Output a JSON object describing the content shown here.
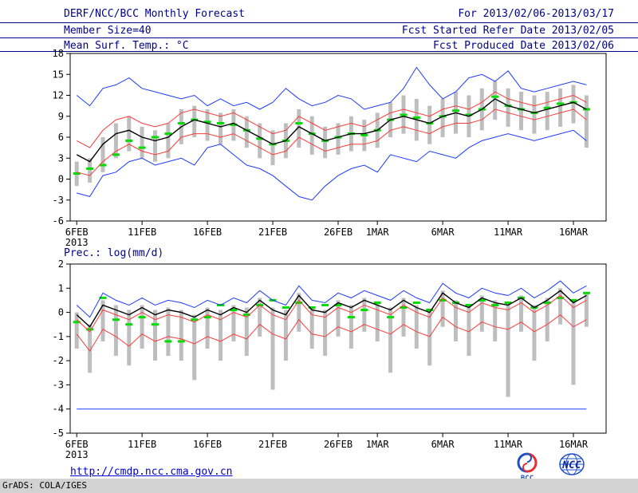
{
  "header": {
    "title": "DERF/NCC/BCC Monthly Forecast",
    "member_size": "Member Size=40",
    "for_range": "For 2013/02/06-2013/03/17",
    "fcst_started": "Fcst Started Refer Date 2013/02/05",
    "fcst_produced": "Fcst Produced Date 2013/02/06"
  },
  "footer": {
    "url": "http://cmdp.ncc.cma.gov.cn",
    "grads_credit": "GrADS: COLA/IGES",
    "bcc_label": "BCC",
    "ncc_label": "NCC"
  },
  "chart_data": [
    {
      "type": "line",
      "title": "Mean Surf. Temp.: °C",
      "xlabel": "",
      "ylabel": "",
      "ylim": [
        -6,
        18
      ],
      "yticks": [
        -6,
        -3,
        0,
        3,
        6,
        9,
        12,
        15,
        18
      ],
      "x_start_date": "2013-02-06",
      "x_end_date": "2013-03-17",
      "x_count": 40,
      "x_span": 41,
      "grid": false,
      "legend": false,
      "xticks": [
        {
          "index": 0,
          "label": "6FEB",
          "sub": "2013"
        },
        {
          "index": 5,
          "label": "11FEB"
        },
        {
          "index": 10,
          "label": "16FEB"
        },
        {
          "index": 15,
          "label": "21FEB"
        },
        {
          "index": 20,
          "label": "26FEB"
        },
        {
          "index": 23,
          "label": "1MAR"
        },
        {
          "index": 28,
          "label": "6MAR"
        },
        {
          "index": 33,
          "label": "11MAR"
        },
        {
          "index": 38,
          "label": "16MAR"
        }
      ],
      "colors": {
        "bar": "#bebebe",
        "green": "#00dc00",
        "blue": "#1e3cff",
        "red": "#fa3c3c",
        "mean": "#000000"
      },
      "series": [
        {
          "name": "ensemble-max",
          "color": "#1e3cff",
          "width": 1,
          "values": [
            12,
            10.5,
            13,
            13.5,
            14.5,
            13,
            12.5,
            12,
            11.5,
            12,
            10.5,
            11.5,
            10.5,
            11,
            10,
            11,
            13,
            11.5,
            10.5,
            11,
            12,
            11.5,
            10,
            10.5,
            11,
            13,
            16,
            13.5,
            11.5,
            12.5,
            14.5,
            15,
            14,
            15.5,
            13,
            12.5,
            13,
            13.5,
            14,
            13.5
          ]
        },
        {
          "name": "ensemble-min",
          "color": "#1e3cff",
          "width": 1,
          "values": [
            -2,
            -2.5,
            0.5,
            1,
            2.5,
            3,
            2,
            2.5,
            3,
            2,
            4.5,
            5,
            3.5,
            2,
            1.5,
            0.5,
            -1,
            -2.5,
            -3,
            -1,
            0.5,
            1.5,
            2,
            1,
            3.5,
            3,
            2.5,
            4,
            3.5,
            3,
            4.5,
            5.5,
            6,
            6.5,
            6,
            5.5,
            6,
            6.5,
            7,
            5.5
          ]
        },
        {
          "name": "upper-spread",
          "color": "#fa3c3c",
          "width": 1,
          "values": [
            5.5,
            4.5,
            7,
            8.5,
            9,
            8,
            7.5,
            8,
            9.5,
            10,
            9.5,
            9,
            9.5,
            8.5,
            7.5,
            6.5,
            7,
            9,
            8,
            7,
            7.5,
            8,
            7.5,
            8.5,
            9.5,
            10,
            9.5,
            9,
            10,
            10.5,
            10,
            11,
            12.5,
            11.5,
            11,
            10.5,
            11,
            11.5,
            12,
            11
          ]
        },
        {
          "name": "lower-spread",
          "color": "#fa3c3c",
          "width": 1,
          "values": [
            1,
            0.5,
            2.5,
            4,
            5,
            4,
            3.5,
            4,
            6,
            6.5,
            6.5,
            6,
            6.5,
            5.5,
            4.5,
            3.5,
            4,
            6,
            5,
            4,
            4.5,
            5,
            5,
            5.5,
            7,
            7.5,
            7,
            6.5,
            7.5,
            8,
            8,
            8.5,
            10,
            9.5,
            9,
            8.5,
            9,
            9.5,
            10,
            8.5
          ]
        },
        {
          "name": "ensemble-mean",
          "color": "#000000",
          "width": 1.4,
          "values": [
            3.5,
            2.5,
            5,
            6.5,
            7,
            6,
            5.5,
            6,
            7.5,
            8.5,
            8,
            7.5,
            8,
            7,
            6,
            5,
            5.5,
            7.5,
            6.5,
            5.5,
            6,
            6.5,
            6.5,
            7,
            8.5,
            9,
            8.5,
            8,
            9,
            9.5,
            9,
            10,
            11.5,
            10.5,
            10,
            9.5,
            10,
            10.5,
            11,
            10
          ]
        }
      ],
      "green_markers": [
        0.8,
        1.5,
        2,
        3.5,
        5.5,
        4.5,
        6,
        6.5,
        8,
        8.5,
        8.2,
        8,
        7.8,
        7,
        5.8,
        5,
        5.5,
        8,
        6.5,
        5.5,
        6,
        6.5,
        6.3,
        7,
        8.5,
        9.2,
        8.8,
        8,
        9,
        9.8,
        9.2,
        10,
        11.8,
        10.5,
        10,
        9.5,
        10.2,
        10.8,
        11,
        10
      ],
      "spread_bars": [
        [
          -1,
          2.5
        ],
        [
          -0.5,
          3
        ],
        [
          1,
          6
        ],
        [
          3,
          8
        ],
        [
          4,
          9
        ],
        [
          3,
          7.5
        ],
        [
          2.5,
          7
        ],
        [
          3,
          8
        ],
        [
          5,
          10
        ],
        [
          6,
          10.5
        ],
        [
          5.5,
          10
        ],
        [
          5,
          9.5
        ],
        [
          5.5,
          10
        ],
        [
          4.5,
          9
        ],
        [
          3,
          8
        ],
        [
          2,
          7
        ],
        [
          3,
          8
        ],
        [
          4.5,
          10
        ],
        [
          3.5,
          9
        ],
        [
          3,
          7.5
        ],
        [
          3.5,
          8
        ],
        [
          4,
          9
        ],
        [
          4,
          8.5
        ],
        [
          4.5,
          9.5
        ],
        [
          6,
          11
        ],
        [
          6.5,
          12
        ],
        [
          5.5,
          11.5
        ],
        [
          5,
          10.5
        ],
        [
          6,
          11.5
        ],
        [
          6.5,
          12.5
        ],
        [
          6,
          12
        ],
        [
          7,
          13
        ],
        [
          8.5,
          14
        ],
        [
          7.5,
          13
        ],
        [
          7,
          12.5
        ],
        [
          6.5,
          12
        ],
        [
          7,
          12.5
        ],
        [
          7.5,
          13
        ],
        [
          8,
          13.5
        ],
        [
          4.5,
          12
        ]
      ]
    },
    {
      "type": "line",
      "title": "Prec.: log(mm/d)",
      "xlabel": "",
      "ylabel": "",
      "ylim": [
        -5,
        2
      ],
      "yticks": [
        -5,
        -4,
        -3,
        -2,
        -1,
        0,
        1,
        2
      ],
      "x_start_date": "2013-02-06",
      "x_end_date": "2013-03-17",
      "x_count": 40,
      "x_span": 41,
      "grid": false,
      "legend": false,
      "xticks": [
        {
          "index": 0,
          "label": "6FEB",
          "sub": "2013"
        },
        {
          "index": 5,
          "label": "11FEB"
        },
        {
          "index": 10,
          "label": "16FEB"
        },
        {
          "index": 15,
          "label": "21FEB"
        },
        {
          "index": 20,
          "label": "26FEB"
        },
        {
          "index": 23,
          "label": "1MAR"
        },
        {
          "index": 28,
          "label": "6MAR"
        },
        {
          "index": 33,
          "label": "11MAR"
        },
        {
          "index": 38,
          "label": "16MAR"
        }
      ],
      "colors": {
        "bar": "#bebebe",
        "green": "#00dc00",
        "blue": "#1e3cff",
        "red": "#fa3c3c",
        "mean": "#000000"
      },
      "series": [
        {
          "name": "ensemble-max",
          "color": "#1e3cff",
          "width": 1,
          "values": [
            0.3,
            -0.2,
            0.8,
            0.5,
            0.3,
            0.6,
            0.3,
            0.5,
            0.4,
            0.2,
            0.5,
            0.3,
            0.6,
            0.4,
            0.9,
            0.5,
            0.3,
            1.1,
            0.5,
            0.4,
            0.8,
            0.6,
            0.9,
            0.7,
            0.5,
            0.9,
            0.6,
            0.4,
            1.2,
            0.8,
            0.6,
            1.0,
            0.8,
            0.7,
            1.0,
            0.6,
            0.9,
            1.3,
            0.8,
            1.1
          ]
        },
        {
          "name": "ensemble-min",
          "color": "#1e3cff",
          "width": 1,
          "values": [
            -4,
            -4,
            -4,
            -4,
            -4,
            -4,
            -4,
            -4,
            -4,
            -4,
            -4,
            -4,
            -4,
            -4,
            -4,
            -4,
            -4,
            -4,
            -4,
            -4,
            -4,
            -4,
            -4,
            -4,
            -4,
            -4,
            -4,
            -4,
            -4,
            -4,
            -4,
            -4,
            -4,
            -4,
            -4,
            -4,
            -4,
            -4,
            -4,
            -4
          ]
        },
        {
          "name": "upper-spread",
          "color": "#fa3c3c",
          "width": 1,
          "values": [
            -0.3,
            -0.8,
            0.1,
            -0.1,
            -0.3,
            0.0,
            -0.3,
            -0.1,
            -0.2,
            -0.4,
            -0.1,
            -0.3,
            0.0,
            -0.2,
            0.3,
            -0.1,
            -0.3,
            0.5,
            -0.1,
            -0.2,
            0.2,
            0.0,
            0.3,
            0.1,
            -0.1,
            0.3,
            0.0,
            -0.2,
            0.6,
            0.2,
            0.0,
            0.4,
            0.2,
            0.1,
            0.4,
            0.0,
            0.3,
            0.7,
            0.2,
            0.5
          ]
        },
        {
          "name": "lower-spread",
          "color": "#fa3c3c",
          "width": 1,
          "values": [
            -0.9,
            -1.6,
            -0.7,
            -1.0,
            -1.4,
            -0.9,
            -1.2,
            -1.0,
            -1.1,
            -1.3,
            -1.0,
            -1.2,
            -0.9,
            -1.1,
            -0.5,
            -0.9,
            -1.1,
            -0.3,
            -0.9,
            -1.0,
            -0.6,
            -0.8,
            -0.5,
            -0.7,
            -0.9,
            -0.5,
            -0.8,
            -1.0,
            -0.2,
            -0.6,
            -0.8,
            -0.4,
            -0.6,
            -0.7,
            -0.4,
            -0.8,
            -0.5,
            -0.1,
            -0.6,
            -0.3
          ]
        },
        {
          "name": "ensemble-mean",
          "color": "#000000",
          "width": 1.4,
          "values": [
            -0.1,
            -0.6,
            0.3,
            0.1,
            -0.1,
            0.2,
            -0.1,
            0.1,
            0.0,
            -0.2,
            0.1,
            -0.1,
            0.2,
            0.0,
            0.5,
            0.1,
            -0.1,
            0.7,
            0.1,
            0.0,
            0.4,
            0.2,
            0.5,
            0.3,
            0.1,
            0.5,
            0.2,
            0.0,
            0.8,
            0.4,
            0.2,
            0.6,
            0.4,
            0.3,
            0.6,
            0.2,
            0.5,
            0.9,
            0.4,
            0.7
          ]
        }
      ],
      "green_markers": [
        -0.4,
        -0.7,
        0.6,
        -0.3,
        -0.5,
        -0.2,
        -0.5,
        -1.2,
        -1.2,
        -0.3,
        -0.2,
        0.3,
        0.1,
        -0.1,
        0.3,
        0.5,
        0.2,
        0.4,
        0.2,
        0.3,
        0.3,
        -0.2,
        0.1,
        0.4,
        -0.2,
        0.2,
        0.4,
        0.1,
        0.5,
        0.4,
        0.3,
        0.5,
        0.3,
        0.4,
        0.6,
        0.2,
        0.4,
        0.6,
        0.5,
        0.8
      ],
      "spread_bars": [
        [
          -1.5,
          0
        ],
        [
          -2.5,
          -0.5
        ],
        [
          -1.2,
          0.5
        ],
        [
          -1.8,
          0.3
        ],
        [
          -2.2,
          0.1
        ],
        [
          -1.5,
          0.3
        ],
        [
          -2,
          0.1
        ],
        [
          -1.8,
          0.2
        ],
        [
          -2,
          0.1
        ],
        [
          -2.8,
          -0.1
        ],
        [
          -1.5,
          0.2
        ],
        [
          -2,
          0.1
        ],
        [
          -1.2,
          0.3
        ],
        [
          -1.8,
          0.2
        ],
        [
          -1,
          0.6
        ],
        [
          -3.2,
          0.2
        ],
        [
          -2,
          0.1
        ],
        [
          -0.8,
          0.8
        ],
        [
          -1.5,
          0.2
        ],
        [
          -1.8,
          0.1
        ],
        [
          -1,
          0.5
        ],
        [
          -1.5,
          0.3
        ],
        [
          -0.8,
          0.6
        ],
        [
          -1.2,
          0.4
        ],
        [
          -2.5,
          0.2
        ],
        [
          -1,
          0.6
        ],
        [
          -1.5,
          0.3
        ],
        [
          -2.2,
          0.1
        ],
        [
          -0.6,
          0.9
        ],
        [
          -1.2,
          0.5
        ],
        [
          -1.8,
          0.3
        ],
        [
          -0.8,
          0.7
        ],
        [
          -1.2,
          0.5
        ],
        [
          -3.5,
          0.4
        ],
        [
          -0.8,
          0.7
        ],
        [
          -2,
          0.3
        ],
        [
          -1.2,
          0.6
        ],
        [
          -0.5,
          1
        ],
        [
          -3,
          0.5
        ],
        [
          -0.6,
          0.8
        ]
      ]
    }
  ]
}
